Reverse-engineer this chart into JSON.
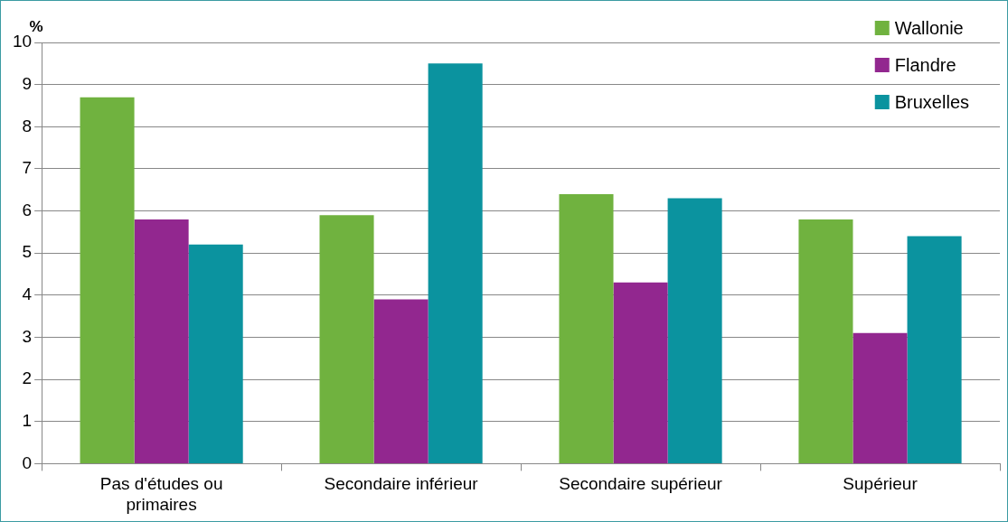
{
  "chart_data": {
    "type": "bar",
    "ylabel": "%",
    "categories": [
      "Pas d'études ou primaires",
      "Secondaire inférieur",
      "Secondaire supérieur",
      "Supérieur"
    ],
    "series": [
      {
        "name": "Wallonie",
        "color": "#70b23f",
        "values": [
          8.7,
          5.9,
          6.4,
          5.8
        ]
      },
      {
        "name": "Flandre",
        "color": "#92278f",
        "values": [
          5.8,
          3.9,
          4.3,
          3.1
        ]
      },
      {
        "name": "Bruxelles",
        "color": "#0b939f",
        "values": [
          5.2,
          9.5,
          6.3,
          5.4
        ]
      }
    ],
    "ylim": [
      0,
      10
    ],
    "yticks": [
      0,
      1,
      2,
      3,
      4,
      5,
      6,
      7,
      8,
      9,
      10
    ],
    "grid": "y",
    "legend": "top right"
  }
}
